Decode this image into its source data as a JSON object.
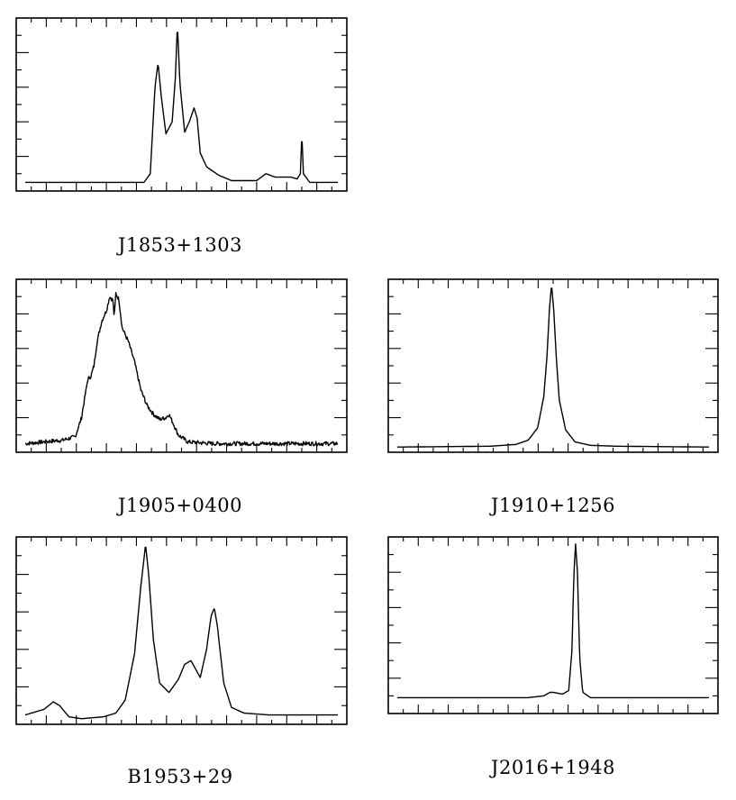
{
  "chart_data": [
    {
      "type": "line",
      "label": "J1853+1303",
      "points": [
        [
          0,
          0.05
        ],
        [
          0.38,
          0.05
        ],
        [
          0.4,
          0.1
        ],
        [
          0.415,
          0.6
        ],
        [
          0.425,
          0.74
        ],
        [
          0.435,
          0.55
        ],
        [
          0.45,
          0.33
        ],
        [
          0.47,
          0.4
        ],
        [
          0.48,
          0.65
        ],
        [
          0.487,
          0.96
        ],
        [
          0.495,
          0.62
        ],
        [
          0.51,
          0.34
        ],
        [
          0.525,
          0.4
        ],
        [
          0.54,
          0.48
        ],
        [
          0.55,
          0.42
        ],
        [
          0.56,
          0.22
        ],
        [
          0.58,
          0.14
        ],
        [
          0.62,
          0.09
        ],
        [
          0.66,
          0.06
        ],
        [
          0.74,
          0.06
        ],
        [
          0.77,
          0.1
        ],
        [
          0.8,
          0.08
        ],
        [
          0.85,
          0.08
        ],
        [
          0.87,
          0.07
        ],
        [
          0.88,
          0.1
        ],
        [
          0.885,
          0.33
        ],
        [
          0.89,
          0.1
        ],
        [
          0.91,
          0.05
        ],
        [
          1,
          0.05
        ]
      ]
    },
    {
      "type": "line",
      "label": "J1905+0400",
      "points": [
        [
          0,
          0.05
        ],
        [
          0.12,
          0.07
        ],
        [
          0.16,
          0.09
        ],
        [
          0.18,
          0.2
        ],
        [
          0.2,
          0.42
        ],
        [
          0.21,
          0.44
        ],
        [
          0.22,
          0.5
        ],
        [
          0.23,
          0.64
        ],
        [
          0.245,
          0.76
        ],
        [
          0.26,
          0.82
        ],
        [
          0.27,
          0.9
        ],
        [
          0.28,
          0.88
        ],
        [
          0.285,
          0.78
        ],
        [
          0.29,
          0.92
        ],
        [
          0.3,
          0.88
        ],
        [
          0.31,
          0.72
        ],
        [
          0.33,
          0.64
        ],
        [
          0.35,
          0.52
        ],
        [
          0.37,
          0.36
        ],
        [
          0.39,
          0.27
        ],
        [
          0.41,
          0.22
        ],
        [
          0.43,
          0.19
        ],
        [
          0.45,
          0.2
        ],
        [
          0.46,
          0.22
        ],
        [
          0.47,
          0.18
        ],
        [
          0.49,
          0.1
        ],
        [
          0.52,
          0.06
        ],
        [
          0.6,
          0.05
        ],
        [
          1,
          0.05
        ]
      ],
      "noise": 0.012
    },
    {
      "type": "line",
      "label": "J1910+1256",
      "points": [
        [
          0,
          0.03
        ],
        [
          0.3,
          0.035
        ],
        [
          0.38,
          0.045
        ],
        [
          0.42,
          0.07
        ],
        [
          0.45,
          0.14
        ],
        [
          0.47,
          0.32
        ],
        [
          0.48,
          0.55
        ],
        [
          0.488,
          0.82
        ],
        [
          0.495,
          0.97
        ],
        [
          0.502,
          0.82
        ],
        [
          0.51,
          0.55
        ],
        [
          0.52,
          0.3
        ],
        [
          0.54,
          0.13
        ],
        [
          0.57,
          0.06
        ],
        [
          0.62,
          0.04
        ],
        [
          0.7,
          0.035
        ],
        [
          1,
          0.03
        ]
      ]
    },
    {
      "type": "line",
      "label": "B1953+29",
      "points": [
        [
          0,
          0.05
        ],
        [
          0.06,
          0.08
        ],
        [
          0.09,
          0.12
        ],
        [
          0.11,
          0.1
        ],
        [
          0.14,
          0.04
        ],
        [
          0.18,
          0.03
        ],
        [
          0.25,
          0.04
        ],
        [
          0.29,
          0.06
        ],
        [
          0.32,
          0.13
        ],
        [
          0.35,
          0.38
        ],
        [
          0.37,
          0.74
        ],
        [
          0.385,
          0.96
        ],
        [
          0.395,
          0.8
        ],
        [
          0.41,
          0.45
        ],
        [
          0.43,
          0.22
        ],
        [
          0.46,
          0.17
        ],
        [
          0.49,
          0.24
        ],
        [
          0.51,
          0.32
        ],
        [
          0.53,
          0.34
        ],
        [
          0.55,
          0.28
        ],
        [
          0.56,
          0.25
        ],
        [
          0.58,
          0.4
        ],
        [
          0.595,
          0.58
        ],
        [
          0.605,
          0.62
        ],
        [
          0.615,
          0.52
        ],
        [
          0.635,
          0.22
        ],
        [
          0.66,
          0.09
        ],
        [
          0.7,
          0.06
        ],
        [
          0.78,
          0.05
        ],
        [
          1,
          0.05
        ]
      ]
    },
    {
      "type": "line",
      "label": "J2016+1948",
      "points": [
        [
          0,
          0.09
        ],
        [
          0.3,
          0.09
        ],
        [
          0.42,
          0.09
        ],
        [
          0.47,
          0.1
        ],
        [
          0.49,
          0.12
        ],
        [
          0.5,
          0.12
        ],
        [
          0.53,
          0.11
        ],
        [
          0.55,
          0.13
        ],
        [
          0.56,
          0.35
        ],
        [
          0.567,
          0.8
        ],
        [
          0.572,
          0.96
        ],
        [
          0.578,
          0.8
        ],
        [
          0.585,
          0.32
        ],
        [
          0.595,
          0.12
        ],
        [
          0.62,
          0.09
        ],
        [
          0.7,
          0.09
        ],
        [
          1,
          0.09
        ]
      ]
    }
  ]
}
